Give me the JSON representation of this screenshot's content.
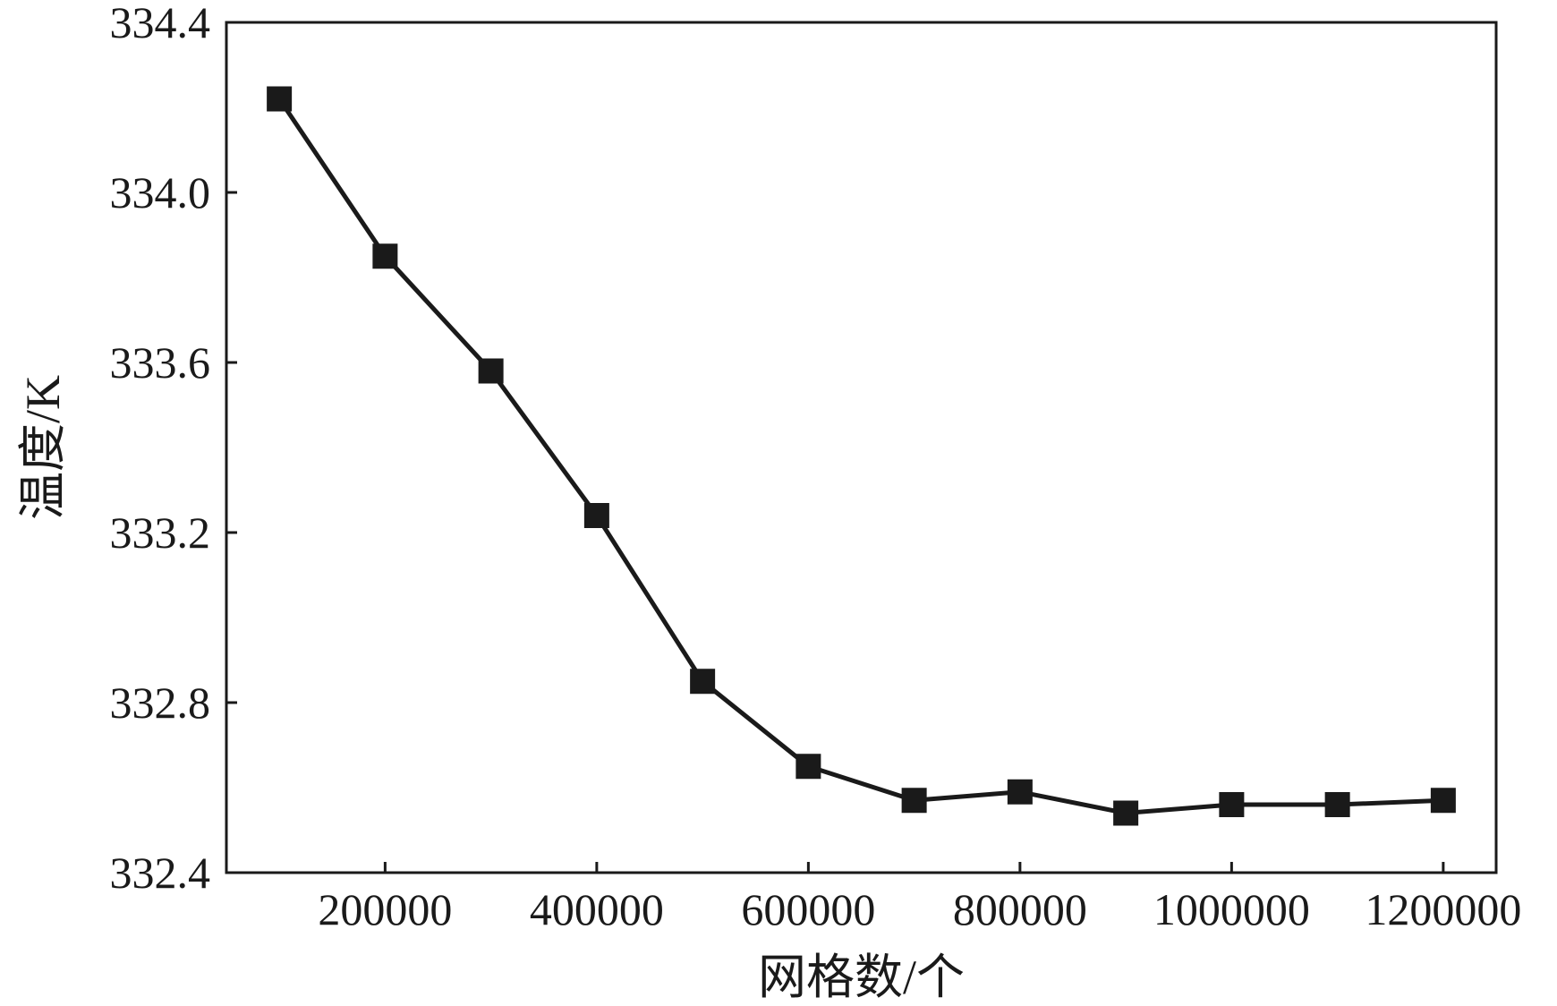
{
  "chart_data": {
    "type": "line",
    "xlabel": "网格数/个",
    "ylabel": "温度/K",
    "xlim": [
      50000,
      1250000
    ],
    "ylim": [
      332.4,
      334.4
    ],
    "x_ticks": [
      200000,
      400000,
      600000,
      800000,
      1000000,
      1200000
    ],
    "x_tick_labels": [
      "200000",
      "400000",
      "600000",
      "800000",
      "1000000",
      "1200000"
    ],
    "y_ticks": [
      332.4,
      332.8,
      333.2,
      333.6,
      334.0,
      334.4
    ],
    "y_tick_labels": [
      "332.4",
      "332.8",
      "333.2",
      "333.6",
      "334.0",
      "334.4"
    ],
    "grid": false,
    "legend": "none",
    "series": [
      {
        "marker": "square",
        "color": "#1a1a1a",
        "x": [
          100000,
          200000,
          300000,
          400000,
          500000,
          600000,
          700000,
          800000,
          900000,
          1000000,
          1100000,
          1200000
        ],
        "values": [
          334.22,
          333.85,
          333.58,
          333.24,
          332.85,
          332.65,
          332.57,
          332.59,
          332.54,
          332.56,
          332.56,
          332.57
        ]
      }
    ]
  }
}
